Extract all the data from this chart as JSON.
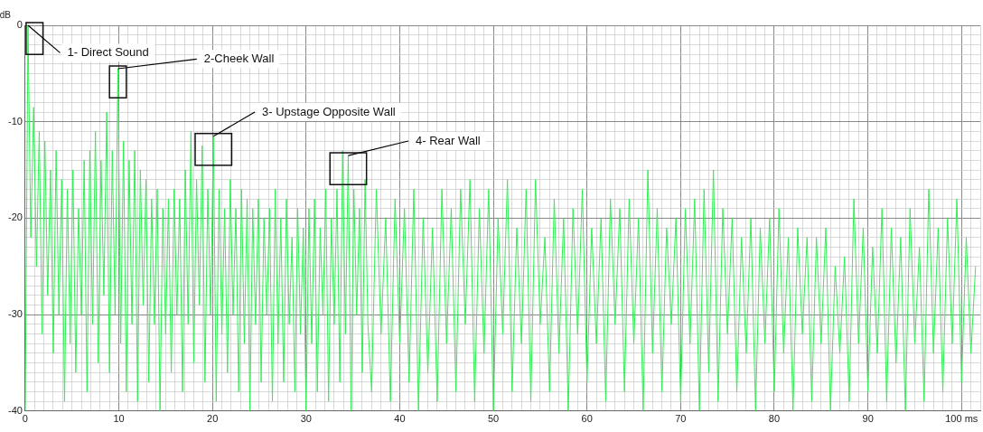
{
  "chart_data": {
    "type": "line",
    "ylabel": "dB",
    "xlim": [
      0,
      102
    ],
    "ylim": [
      -40,
      0
    ],
    "xticks": [
      0,
      {
        "value": 1,
        "label": null
      },
      {
        "value": 2,
        "label": null
      },
      {
        "value": 3,
        "label": null
      },
      {
        "value": 4,
        "label": null
      },
      {
        "value": 5,
        "label": null
      },
      {
        "value": 6,
        "label": null
      },
      {
        "value": 7,
        "label": null
      },
      {
        "value": 8,
        "label": null
      },
      {
        "value": 9,
        "label": null
      },
      10,
      {
        "value": 11,
        "label": null
      },
      {
        "value": 12,
        "label": null
      },
      {
        "value": 13,
        "label": null
      },
      {
        "value": 14,
        "label": null
      },
      {
        "value": 15,
        "label": null
      },
      {
        "value": 16,
        "label": null
      },
      {
        "value": 17,
        "label": null
      },
      {
        "value": 18,
        "label": null
      },
      {
        "value": 19,
        "label": null
      },
      20,
      {
        "value": 21,
        "label": null
      },
      {
        "value": 22,
        "label": null
      },
      {
        "value": 23,
        "label": null
      },
      {
        "value": 24,
        "label": null
      },
      {
        "value": 25,
        "label": null
      },
      {
        "value": 26,
        "label": null
      },
      {
        "value": 27,
        "label": null
      },
      {
        "value": 28,
        "label": null
      },
      {
        "value": 29,
        "label": null
      },
      30,
      {
        "value": 31,
        "label": null
      },
      {
        "value": 32,
        "label": null
      },
      {
        "value": 33,
        "label": null
      },
      {
        "value": 34,
        "label": null
      },
      {
        "value": 35,
        "label": null
      },
      {
        "value": 36,
        "label": null
      },
      {
        "value": 37,
        "label": null
      },
      {
        "value": 38,
        "label": null
      },
      {
        "value": 39,
        "label": null
      },
      40,
      {
        "value": 41,
        "label": null
      },
      {
        "value": 42,
        "label": null
      },
      {
        "value": 43,
        "label": null
      },
      {
        "value": 44,
        "label": null
      },
      {
        "value": 45,
        "label": null
      },
      {
        "value": 46,
        "label": null
      },
      {
        "value": 47,
        "label": null
      },
      {
        "value": 48,
        "label": null
      },
      {
        "value": 49,
        "label": null
      },
      50,
      {
        "value": 51,
        "label": null
      },
      {
        "value": 52,
        "label": null
      },
      {
        "value": 53,
        "label": null
      },
      {
        "value": 54,
        "label": null
      },
      {
        "value": 55,
        "label": null
      },
      {
        "value": 56,
        "label": null
      },
      {
        "value": 57,
        "label": null
      },
      {
        "value": 58,
        "label": null
      },
      {
        "value": 59,
        "label": null
      },
      60,
      {
        "value": 61,
        "label": null
      },
      {
        "value": 62,
        "label": null
      },
      {
        "value": 63,
        "label": null
      },
      {
        "value": 64,
        "label": null
      },
      {
        "value": 65,
        "label": null
      },
      {
        "value": 66,
        "label": null
      },
      {
        "value": 67,
        "label": null
      },
      {
        "value": 68,
        "label": null
      },
      {
        "value": 69,
        "label": null
      },
      70,
      {
        "value": 71,
        "label": null
      },
      {
        "value": 72,
        "label": null
      },
      {
        "value": 73,
        "label": null
      },
      {
        "value": 74,
        "label": null
      },
      {
        "value": 75,
        "label": null
      },
      {
        "value": 76,
        "label": null
      },
      {
        "value": 77,
        "label": null
      },
      {
        "value": 78,
        "label": null
      },
      {
        "value": 79,
        "label": null
      },
      80,
      {
        "value": 81,
        "label": null
      },
      {
        "value": 82,
        "label": null
      },
      {
        "value": 83,
        "label": null
      },
      {
        "value": 84,
        "label": null
      },
      {
        "value": 85,
        "label": null
      },
      {
        "value": 86,
        "label": null
      },
      {
        "value": 87,
        "label": null
      },
      {
        "value": 88,
        "label": null
      },
      {
        "value": 89,
        "label": null
      },
      90,
      {
        "value": 91,
        "label": null
      },
      {
        "value": 92,
        "label": null
      },
      {
        "value": 93,
        "label": null
      },
      {
        "value": 94,
        "label": null
      },
      {
        "value": 95,
        "label": null
      },
      {
        "value": 96,
        "label": null
      },
      {
        "value": 97,
        "label": null
      },
      {
        "value": 98,
        "label": null
      },
      {
        "value": 99,
        "label": null
      },
      {
        "value": 100,
        "label": "100 ms"
      },
      {
        "value": 101,
        "label": null
      },
      {
        "value": 102,
        "label": null
      }
    ],
    "yticks": [
      -40,
      {
        "value": -39,
        "label": null
      },
      {
        "value": -38,
        "label": null
      },
      {
        "value": -37,
        "label": null
      },
      {
        "value": -36,
        "label": null
      },
      {
        "value": -35,
        "label": null
      },
      {
        "value": -34,
        "label": null
      },
      {
        "value": -33,
        "label": null
      },
      {
        "value": -32,
        "label": null
      },
      {
        "value": -31,
        "label": null
      },
      -30,
      {
        "value": -29,
        "label": null
      },
      {
        "value": -28,
        "label": null
      },
      {
        "value": -27,
        "label": null
      },
      {
        "value": -26,
        "label": null
      },
      {
        "value": -25,
        "label": null
      },
      {
        "value": -24,
        "label": null
      },
      {
        "value": -23,
        "label": null
      },
      {
        "value": -22,
        "label": null
      },
      {
        "value": -21,
        "label": null
      },
      -20,
      {
        "value": -19,
        "label": null
      },
      {
        "value": -18,
        "label": null
      },
      {
        "value": -17,
        "label": null
      },
      {
        "value": -16,
        "label": null
      },
      {
        "value": -15,
        "label": null
      },
      {
        "value": -14,
        "label": null
      },
      {
        "value": -13,
        "label": null
      },
      {
        "value": -12,
        "label": null
      },
      {
        "value": -11,
        "label": null
      },
      -10,
      {
        "value": -9,
        "label": null
      },
      {
        "value": -8,
        "label": null
      },
      {
        "value": -7,
        "label": null
      },
      {
        "value": -6,
        "label": null
      },
      {
        "value": -5,
        "label": null
      },
      {
        "value": -4,
        "label": null
      },
      {
        "value": -3,
        "label": null
      },
      {
        "value": -2,
        "label": null
      },
      {
        "value": -1,
        "label": null
      },
      0
    ],
    "grid": true,
    "legend": false,
    "marker": "none",
    "line_style": "solid",
    "annotations": [
      {
        "text": "1- Direct Sound",
        "x": 0.3,
        "y": 0
      },
      {
        "text": "2-Cheek Wall",
        "x": 9.9,
        "y": -4.5
      },
      {
        "text": "3- Upstage Opposite Wall",
        "x": 20.1,
        "y": -11.5
      },
      {
        "text": "4- Rear Wall",
        "x": 34.5,
        "y": -13.5
      }
    ],
    "x": [
      0,
      0.3,
      0.6,
      0.9,
      1.2,
      1.5,
      1.8,
      2.1,
      2.4,
      2.7,
      3.0,
      3.3,
      3.6,
      3.9,
      4.2,
      4.5,
      4.8,
      5.1,
      5.4,
      5.7,
      6.0,
      6.3,
      6.6,
      6.9,
      7.2,
      7.5,
      7.8,
      8.1,
      8.4,
      8.7,
      9.0,
      9.3,
      9.6,
      9.9,
      10.2,
      10.5,
      10.8,
      11.1,
      11.4,
      11.7,
      12.0,
      12.3,
      12.6,
      12.9,
      13.2,
      13.5,
      13.8,
      14.1,
      14.4,
      14.7,
      15.0,
      15.3,
      15.6,
      15.9,
      16.2,
      16.5,
      16.8,
      17.1,
      17.4,
      17.7,
      18.0,
      18.3,
      18.6,
      18.9,
      19.2,
      19.5,
      19.8,
      20.1,
      20.4,
      20.7,
      21.0,
      21.3,
      21.6,
      21.9,
      22.2,
      22.5,
      22.8,
      23.1,
      23.4,
      23.7,
      24.0,
      24.3,
      24.6,
      24.9,
      25.2,
      25.5,
      25.8,
      26.1,
      26.4,
      26.7,
      27.0,
      27.3,
      27.6,
      27.9,
      28.2,
      28.5,
      28.8,
      29.1,
      29.4,
      29.7,
      30.0,
      30.3,
      30.6,
      30.9,
      31.2,
      31.5,
      31.8,
      32.1,
      32.4,
      32.7,
      33.0,
      33.3,
      33.6,
      33.9,
      34.2,
      34.5,
      34.8,
      35.1,
      35.4,
      35.7,
      36.0,
      36.3,
      36.6,
      37,
      37.5,
      38,
      38.5,
      39,
      39.5,
      40,
      40.5,
      41,
      41.5,
      42,
      42.5,
      43,
      43.5,
      44,
      44.5,
      45,
      45.5,
      46,
      46.5,
      47,
      47.5,
      48,
      48.5,
      49,
      49.5,
      50,
      50.5,
      51,
      51.5,
      52,
      52.5,
      53,
      53.5,
      54,
      54.5,
      55,
      55.5,
      56,
      56.5,
      57,
      57.5,
      58,
      58.5,
      59,
      59.5,
      60,
      60.5,
      61,
      61.5,
      62,
      62.5,
      63,
      63.5,
      64,
      64.5,
      65,
      65.5,
      66,
      66.5,
      67,
      67.5,
      68,
      68.5,
      69,
      69.5,
      70,
      70.5,
      71,
      71.5,
      72,
      72.5,
      73,
      73.5,
      74,
      74.5,
      75,
      75.5,
      76,
      76.5,
      77,
      77.5,
      78,
      78.5,
      79,
      79.5,
      80,
      80.5,
      81,
      81.5,
      82,
      82.5,
      83,
      83.5,
      84,
      84.5,
      85,
      85.5,
      86,
      86.5,
      87,
      87.5,
      88,
      88.5,
      89,
      89.5,
      90,
      90.5,
      91,
      91.5,
      92,
      92.5,
      93,
      93.5,
      94,
      94.5,
      95,
      95.5,
      96,
      96.5,
      97,
      97.5,
      98,
      98.5,
      99,
      99.5,
      100,
      100.5,
      101,
      101.5
    ],
    "series": [
      {
        "color": "#33ee55",
        "values": [
          -40,
          0,
          -22,
          -8.5,
          -25,
          -11,
          -32,
          -12,
          -28,
          -15,
          -34,
          -13,
          -30,
          -16,
          -39,
          -17,
          -33,
          -15,
          -36,
          -19,
          -30,
          -14,
          -38,
          -13,
          -31,
          -11,
          -35,
          -14,
          -28,
          -9,
          -36,
          -13,
          -30,
          -4.5,
          -33,
          -12,
          -38,
          -14,
          -31,
          -13,
          -39,
          -15,
          -29,
          -16,
          -37,
          -18,
          -31,
          -17,
          -40,
          -19,
          -32,
          -18,
          -36,
          -17,
          -30,
          -18,
          -38,
          -15,
          -31,
          -11,
          -35,
          -16,
          -29,
          -12.5,
          -37,
          -17,
          -30,
          -11.5,
          -39,
          -17,
          -32,
          -19,
          -36,
          -16,
          -30,
          -19,
          -38,
          -17,
          -33,
          -18,
          -40,
          -19,
          -31,
          -18,
          -37,
          -20,
          -30,
          -19,
          -39,
          -17,
          -33,
          -20,
          -37,
          -18,
          -31,
          -22,
          -38,
          -19,
          -32,
          -21,
          -40,
          -19,
          -33,
          -18,
          -38,
          -21,
          -30,
          -17,
          -39,
          -20,
          -31,
          -17,
          -37,
          -13,
          -32,
          -13.5,
          -40,
          -17,
          -30,
          -19,
          -36,
          -16,
          -31,
          -38,
          -17,
          -32,
          -20,
          -39,
          -18,
          -33,
          -19,
          -37,
          -17,
          -40,
          -20,
          -36,
          -21,
          -39,
          -17,
          -33,
          -19,
          -38,
          -17,
          -31,
          -16,
          -39,
          -19,
          -34,
          -17,
          -40,
          -20,
          -32,
          -16,
          -38,
          -21,
          -33,
          -17,
          -39,
          -16,
          -31,
          -22,
          -38,
          -18,
          -34,
          -20,
          -40,
          -19,
          -32,
          -17,
          -37,
          -21,
          -33,
          -20,
          -39,
          -18,
          -31,
          -19,
          -38,
          -18,
          -33,
          -20,
          -40,
          -15,
          -34,
          -19,
          -38,
          -21,
          -31,
          -20,
          -39,
          -19,
          -33,
          -18,
          -40,
          -17,
          -36,
          -15,
          -39,
          -19,
          -32,
          -20,
          -38,
          -22,
          -34,
          -20,
          -40,
          -21,
          -33,
          -20,
          -38,
          -19,
          -34,
          -22,
          -40,
          -21,
          -32,
          -22,
          -39,
          -22,
          -33,
          -21,
          -40,
          -25,
          -34,
          -24,
          -39,
          -18,
          -33,
          -21,
          -38,
          -23,
          -34,
          -19,
          -39,
          -21,
          -35,
          -22,
          -40,
          -19,
          -33,
          -23,
          -39,
          -17,
          -34,
          -21,
          -38,
          -20,
          -33,
          -18,
          -37,
          -22,
          -34,
          -25
        ]
      }
    ]
  }
}
